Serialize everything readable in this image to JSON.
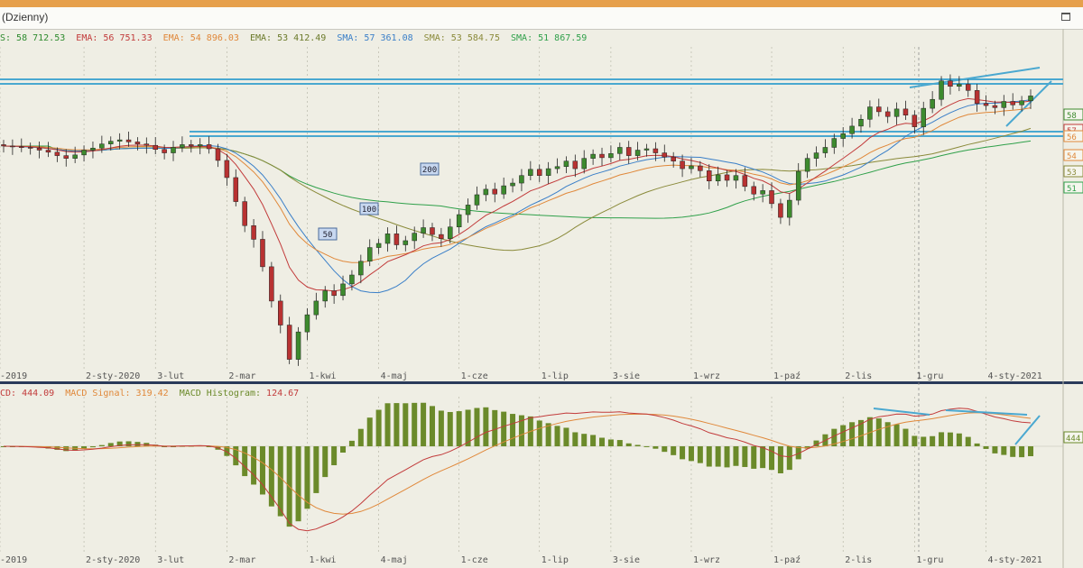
{
  "window": {
    "title": "(Dzienny)"
  },
  "legend": [
    {
      "text": "S: 58 712.53",
      "color": "#2e8b2e"
    },
    {
      "text": "EMA: 56 751.33",
      "color": "#c23b3b"
    },
    {
      "text": "EMA: 54 896.03",
      "color": "#e0883a"
    },
    {
      "text": "EMA: 53 412.49",
      "color": "#6b7a2a"
    },
    {
      "text": "SMA: 57 361.08",
      "color": "#3a7fc8"
    },
    {
      "text": "SMA: 53 584.75",
      "color": "#8a8a3a"
    },
    {
      "text": "SMA: 51 867.59",
      "color": "#2fa04a"
    }
  ],
  "macd_legend": [
    {
      "text": "CD: 444.09",
      "color": "#c23b3b"
    },
    {
      "text": "MACD Signal: 319.42",
      "color": "#e0883a"
    },
    {
      "text": "MACD Histogram:",
      "color": "#6b8a2a"
    },
    {
      "text": "124.67",
      "color": "#c23b3b"
    }
  ],
  "colors": {
    "up": "#3d8a2e",
    "down": "#b83232",
    "ema1": "#c23b3b",
    "ema2": "#e0883a",
    "ema3": "#6b7a2a",
    "sma50": "#3a7fc8",
    "sma100": "#8a8a3a",
    "sma200": "#2fa04a",
    "trend": "#4aa8d0",
    "hist": "#6b8a2a",
    "grid": "#b0b0a0"
  },
  "chart_data": [
    {
      "type": "candlestick",
      "x_tick_labels": [
        "-2019",
        "2-sty-2020",
        "3-lut",
        "2-mar",
        "1-kwi",
        "4-maj",
        "1-cze",
        "1-lip",
        "3-sie",
        "1-wrz",
        "1-paź",
        "2-lis",
        "1-gru",
        "4-sty-2021"
      ],
      "close": [
        52600,
        52500,
        52400,
        52300,
        52000,
        51700,
        51200,
        50800,
        51300,
        52000,
        52300,
        52900,
        53300,
        53500,
        53200,
        52900,
        52700,
        52100,
        51600,
        52400,
        52800,
        52600,
        52800,
        52200,
        50500,
        48000,
        44500,
        41000,
        39000,
        35000,
        30000,
        26500,
        21500,
        25500,
        28000,
        30000,
        31500,
        30800,
        32500,
        33800,
        35800,
        37800,
        38400,
        39800,
        38200,
        38800,
        39900,
        40700,
        39700,
        39100,
        40800,
        42600,
        44000,
        45500,
        46300,
        45600,
        46800,
        47200,
        48300,
        49200,
        48300,
        49300,
        49600,
        50400,
        49300,
        50800,
        51400,
        50900,
        51500,
        52400,
        51200,
        52000,
        52200,
        51600,
        51000,
        50400,
        49300,
        49700,
        49000,
        47500,
        48400,
        47600,
        48300,
        46700,
        45600,
        46100,
        44200,
        42200,
        44700,
        48900,
        50800,
        51600,
        52400,
        53700,
        54400,
        55500,
        56500,
        58300,
        57600,
        56900,
        58000,
        57100,
        55400,
        58100,
        59400,
        62100,
        61300,
        61600,
        60700,
        58800,
        58500,
        58200,
        59100,
        58600,
        59200,
        59900
      ],
      "sma200_labels": [
        "50",
        "100",
        "200"
      ],
      "price_tags": [
        "58",
        "57",
        "56",
        "54",
        "53",
        "51"
      ]
    },
    {
      "type": "bar",
      "name": "MACD Histogram",
      "price_tag": "444"
    }
  ]
}
